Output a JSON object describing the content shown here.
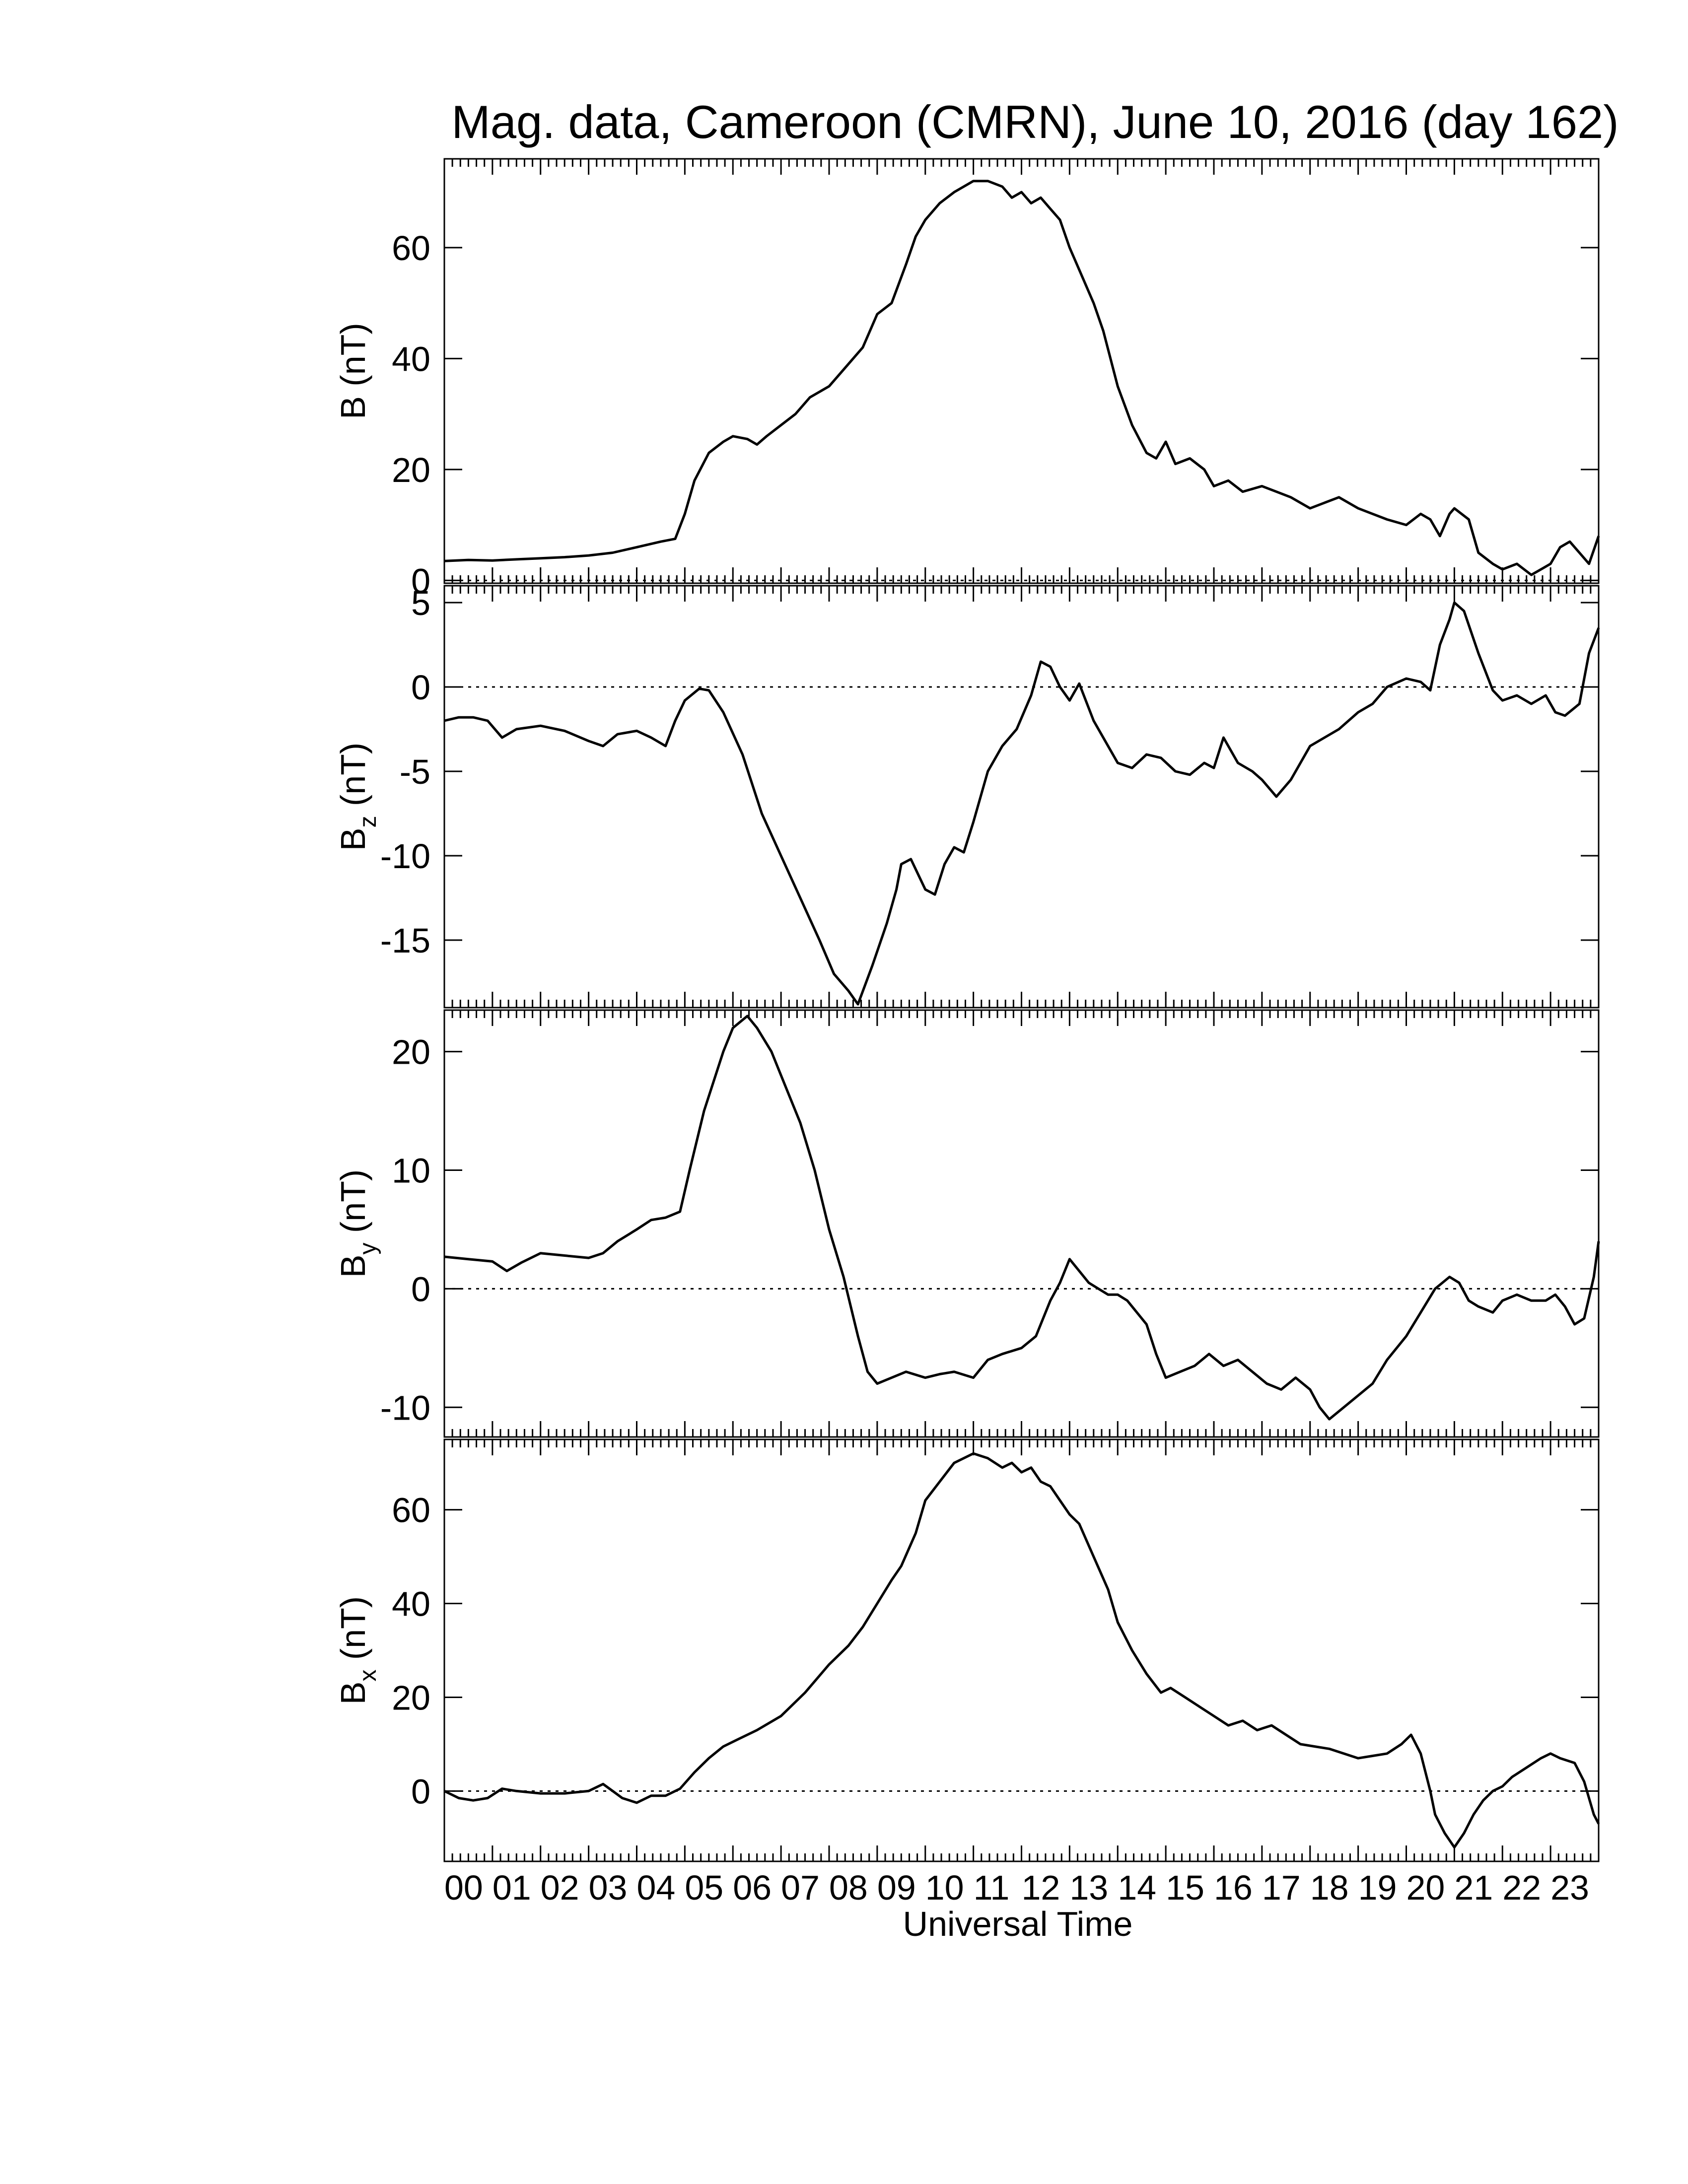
{
  "chart_data": {
    "type": "line",
    "title": "Mag. data, Cameroon (CMRN), June 10, 2016 (day 162)",
    "xlabel": "Universal Time",
    "xlim": [
      0,
      24
    ],
    "x_tick_labels": [
      "00",
      "01",
      "02",
      "03",
      "04",
      "05",
      "06",
      "07",
      "08",
      "09",
      "10",
      "11",
      "12",
      "13",
      "14",
      "15",
      "16",
      "17",
      "18",
      "19",
      "20",
      "21",
      "22",
      "23"
    ],
    "panels": [
      {
        "id": "B",
        "ylabel": {
          "main": "B (nT)",
          "base": "",
          "sub": ""
        },
        "ylim": [
          -0.5,
          76
        ],
        "yticks": [
          0,
          20,
          40,
          60
        ],
        "ytick_labels": [
          "0",
          "20",
          "40",
          "60"
        ],
        "zero_line": true,
        "x": [
          0,
          0.5,
          1,
          1.5,
          2,
          2.5,
          3,
          3.5,
          4,
          4.5,
          4.8,
          5,
          5.2,
          5.5,
          5.8,
          6,
          6.3,
          6.5,
          6.7,
          7,
          7.3,
          7.6,
          8,
          8.3,
          8.7,
          9,
          9.3,
          9.6,
          9.8,
          10,
          10.3,
          10.6,
          11,
          11.3,
          11.6,
          11.8,
          12,
          12.2,
          12.4,
          12.6,
          12.8,
          13,
          13.2,
          13.5,
          13.7,
          14,
          14.3,
          14.6,
          14.8,
          15,
          15.2,
          15.5,
          15.8,
          16,
          16.3,
          16.6,
          17,
          17.3,
          17.6,
          18,
          18.3,
          18.6,
          19,
          19.3,
          19.6,
          20,
          20.3,
          20.5,
          20.7,
          20.9,
          21,
          21.3,
          21.5,
          21.8,
          22,
          22.3,
          22.6,
          22.8,
          23,
          23.2,
          23.4,
          23.6,
          23.8,
          24
        ],
        "y": [
          3.5,
          3.7,
          3.6,
          3.8,
          4,
          4.2,
          4.5,
          5,
          6,
          7,
          7.5,
          12,
          18,
          23,
          25,
          26,
          25.5,
          24.5,
          26,
          28,
          30,
          33,
          35,
          38,
          42,
          48,
          50,
          57,
          62,
          65,
          68,
          70,
          72,
          72,
          71,
          69,
          70,
          68,
          69,
          67,
          65,
          60,
          56,
          50,
          45,
          35,
          28,
          23,
          22,
          25,
          21,
          22,
          20,
          17,
          18,
          16,
          17,
          16,
          15,
          13,
          14,
          15,
          13,
          12,
          11,
          10,
          12,
          11,
          8,
          12,
          13,
          11,
          5,
          3,
          2,
          3,
          1,
          2,
          3,
          6,
          7,
          5,
          3,
          8
        ]
      },
      {
        "id": "Bz",
        "ylabel": {
          "main": "",
          "base": "B",
          "sub": "z"
        },
        "ylim": [
          -19,
          6
        ],
        "yticks": [
          -15,
          -10,
          -5,
          0,
          5
        ],
        "ytick_labels": [
          "-15",
          "-10",
          "-5",
          "0",
          "5"
        ],
        "zero_line": true,
        "x": [
          0,
          0.3,
          0.6,
          0.9,
          1.2,
          1.5,
          2,
          2.5,
          3,
          3.3,
          3.6,
          4,
          4.3,
          4.6,
          4.8,
          5,
          5.3,
          5.5,
          5.8,
          6.2,
          6.6,
          7,
          7.4,
          7.8,
          8.1,
          8.4,
          8.6,
          8.9,
          9.2,
          9.4,
          9.5,
          9.7,
          10,
          10.2,
          10.4,
          10.6,
          10.8,
          11,
          11.3,
          11.6,
          11.9,
          12.2,
          12.4,
          12.6,
          12.8,
          13,
          13.2,
          13.5,
          13.8,
          14,
          14.3,
          14.6,
          14.9,
          15.2,
          15.5,
          15.8,
          16,
          16.2,
          16.5,
          16.8,
          17,
          17.3,
          17.6,
          18,
          18.3,
          18.6,
          19,
          19.3,
          19.6,
          20,
          20.3,
          20.5,
          20.7,
          20.9,
          21,
          21.2,
          21.5,
          21.8,
          22,
          22.3,
          22.6,
          22.9,
          23.1,
          23.3,
          23.6,
          23.8,
          24
        ],
        "y": [
          -2,
          -1.8,
          -1.8,
          -2,
          -3,
          -2.5,
          -2.3,
          -2.6,
          -3.2,
          -3.5,
          -2.8,
          -2.6,
          -3,
          -3.5,
          -2,
          -0.8,
          -0.1,
          -0.2,
          -1.5,
          -4,
          -7.5,
          -10,
          -12.5,
          -15,
          -17,
          -18,
          -18.8,
          -16.5,
          -14,
          -12,
          -10.5,
          -10.2,
          -12,
          -12.3,
          -10.5,
          -9.5,
          -9.8,
          -8,
          -5,
          -3.5,
          -2.5,
          -0.5,
          1.5,
          1.2,
          0,
          -0.8,
          0.2,
          -2,
          -3.5,
          -4.5,
          -4.8,
          -4,
          -4.2,
          -5,
          -5.2,
          -4.5,
          -4.8,
          -3,
          -4.5,
          -5,
          -5.5,
          -6.5,
          -5.5,
          -3.5,
          -3,
          -2.5,
          -1.5,
          -1,
          0,
          0.5,
          0.3,
          -0.2,
          2.5,
          4,
          5,
          4.5,
          2,
          -0.2,
          -0.8,
          -0.5,
          -1,
          -0.5,
          -1.5,
          -1.7,
          -1,
          2,
          3.5
        ]
      },
      {
        "id": "By",
        "ylabel": {
          "main": "",
          "base": "B",
          "sub": "y"
        },
        "ylim": [
          -12.5,
          23.5
        ],
        "yticks": [
          -10,
          0,
          10,
          20
        ],
        "ytick_labels": [
          "-10",
          "0",
          "10",
          "20"
        ],
        "zero_line": true,
        "x": [
          0,
          0.5,
          1,
          1.3,
          1.6,
          2,
          2.5,
          3,
          3.3,
          3.6,
          4,
          4.3,
          4.6,
          4.9,
          5.1,
          5.4,
          5.8,
          6,
          6.3,
          6.5,
          6.8,
          7.1,
          7.4,
          7.7,
          8,
          8.3,
          8.6,
          8.8,
          9,
          9.3,
          9.6,
          10,
          10.3,
          10.6,
          11,
          11.3,
          11.6,
          12,
          12.3,
          12.6,
          12.8,
          12.9,
          13,
          13.2,
          13.4,
          13.6,
          13.8,
          14,
          14.2,
          14.4,
          14.6,
          14.8,
          15,
          15.3,
          15.6,
          15.9,
          16.2,
          16.5,
          16.8,
          17.1,
          17.4,
          17.7,
          18,
          18.2,
          18.4,
          18.7,
          19,
          19.3,
          19.6,
          20,
          20.3,
          20.6,
          20.9,
          21.1,
          21.3,
          21.5,
          21.8,
          22,
          22.3,
          22.6,
          22.9,
          23.1,
          23.3,
          23.5,
          23.7,
          23.9,
          24
        ],
        "y": [
          2.7,
          2.5,
          2.3,
          1.5,
          2.2,
          3,
          2.8,
          2.6,
          3,
          4,
          5,
          5.8,
          6,
          6.5,
          10,
          15,
          20,
          22,
          23,
          22,
          20,
          17,
          14,
          10,
          5,
          1,
          -4,
          -7,
          -8,
          -7.5,
          -7,
          -7.5,
          -7.2,
          -7,
          -7.5,
          -6,
          -5.5,
          -5,
          -4,
          -1,
          0.5,
          1.5,
          2.5,
          1.5,
          0.5,
          0,
          -0.5,
          -0.5,
          -1,
          -2,
          -3,
          -5.5,
          -7.5,
          -7,
          -6.5,
          -5.5,
          -6.5,
          -6,
          -7,
          -8,
          -8.5,
          -7.5,
          -8.5,
          -10,
          -11,
          -10,
          -9,
          -8,
          -6,
          -4,
          -2,
          0,
          1,
          0.5,
          -1,
          -1.5,
          -2,
          -1,
          -0.5,
          -1,
          -1,
          -0.5,
          -1.5,
          -3,
          -2.5,
          1,
          4
        ]
      },
      {
        "id": "Bx",
        "ylabel": {
          "main": "",
          "base": "B",
          "sub": "x"
        },
        "ylim": [
          -15,
          75
        ],
        "yticks": [
          0,
          20,
          40,
          60
        ],
        "ytick_labels": [
          "0",
          "20",
          "40",
          "60"
        ],
        "zero_line": true,
        "x": [
          0,
          0.3,
          0.6,
          0.9,
          1.2,
          1.5,
          2,
          2.5,
          3,
          3.3,
          3.5,
          3.7,
          4,
          4.3,
          4.6,
          4.9,
          5.2,
          5.5,
          5.8,
          6.1,
          6.5,
          7,
          7.5,
          8,
          8.4,
          8.7,
          9,
          9.3,
          9.5,
          9.8,
          10,
          10.3,
          10.6,
          11,
          11.3,
          11.6,
          11.8,
          12,
          12.2,
          12.4,
          12.6,
          12.8,
          13,
          13.2,
          13.5,
          13.8,
          14,
          14.3,
          14.6,
          14.9,
          15.1,
          15.4,
          15.7,
          16,
          16.3,
          16.6,
          16.9,
          17.2,
          17.5,
          17.8,
          18.1,
          18.4,
          18.7,
          19,
          19.3,
          19.6,
          19.9,
          20.1,
          20.3,
          20.5,
          20.6,
          20.8,
          21,
          21.2,
          21.4,
          21.6,
          21.8,
          22,
          22.2,
          22.5,
          22.8,
          23,
          23.2,
          23.5,
          23.7,
          23.9,
          24
        ],
        "y": [
          0,
          -1.5,
          -2,
          -1.5,
          0.5,
          0,
          -0.5,
          -0.5,
          0,
          1.5,
          0,
          -1.5,
          -2.5,
          -1,
          -1,
          0.5,
          4,
          7,
          9.5,
          11,
          13,
          16,
          21,
          27,
          31,
          35,
          40,
          45,
          48,
          55,
          62,
          66,
          70,
          72,
          71,
          69,
          70,
          68,
          69,
          66,
          65,
          62,
          59,
          57,
          50,
          43,
          36,
          30,
          25,
          21,
          22,
          20,
          18,
          16,
          14,
          15,
          13,
          14,
          12,
          10,
          9.5,
          9,
          8,
          7,
          7.5,
          8,
          10,
          12,
          8,
          0,
          -5,
          -9,
          -12,
          -9,
          -5,
          -2,
          0,
          1,
          3,
          5,
          7,
          8,
          7,
          6,
          2,
          -5,
          -7
        ]
      }
    ]
  }
}
